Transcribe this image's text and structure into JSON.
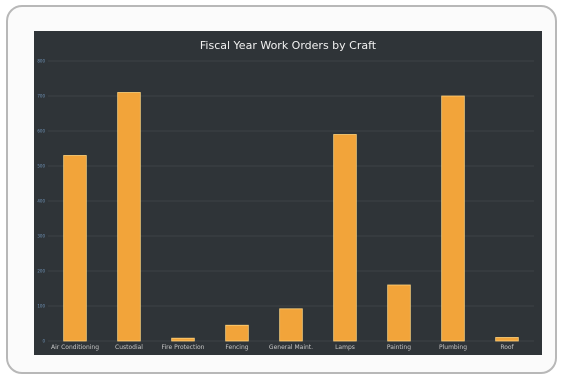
{
  "chart_data": {
    "type": "bar",
    "title": "Fiscal Year Work Orders by Craft",
    "xlabel": "",
    "ylabel": "",
    "categories": [
      "Air Conditioning",
      "Custodial",
      "Fire Protection",
      "Fencing",
      "General Maint.",
      "Lamps",
      "Painting",
      "Plumbing",
      "Roof"
    ],
    "values": [
      530,
      710,
      8,
      45,
      92,
      590,
      160,
      700,
      10
    ],
    "ylim": [
      0,
      800
    ],
    "yticks": [
      0,
      100,
      200,
      300,
      400,
      500,
      600,
      700,
      800
    ],
    "grid": true,
    "bar_color": "#f2a43a",
    "bar_edge_color": "#ffd27a",
    "background": "#2f3438"
  }
}
